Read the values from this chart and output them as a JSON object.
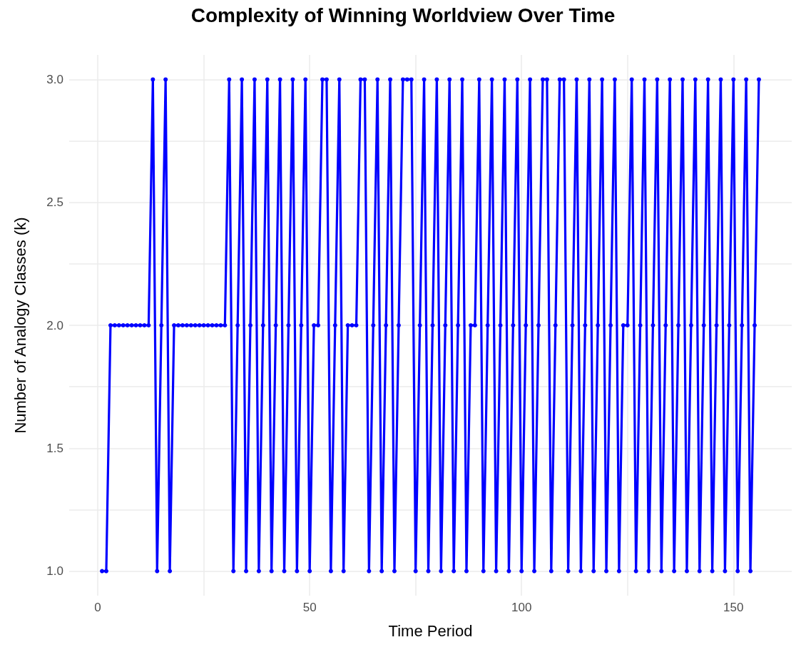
{
  "chart_data": {
    "type": "line",
    "title": "Complexity of Winning Worldview Over Time",
    "xlabel": "Time Period",
    "ylabel": "Number of Analogy Classes (k)",
    "x": [
      1,
      2,
      3,
      4,
      5,
      6,
      7,
      8,
      9,
      10,
      11,
      12,
      13,
      14,
      15,
      16,
      17,
      18,
      19,
      20,
      21,
      22,
      23,
      24,
      25,
      26,
      27,
      28,
      29,
      30,
      31,
      32,
      33,
      34,
      35,
      36,
      37,
      38,
      39,
      40,
      41,
      42,
      43,
      44,
      45,
      46,
      47,
      48,
      49,
      50,
      51,
      52,
      53,
      54,
      55,
      56,
      57,
      58,
      59,
      60,
      61,
      62,
      63,
      64,
      65,
      66,
      67,
      68,
      69,
      70,
      71,
      72,
      73,
      74,
      75,
      76,
      77,
      78,
      79,
      80,
      81,
      82,
      83,
      84,
      85,
      86,
      87,
      88,
      89,
      90,
      91,
      92,
      93,
      94,
      95,
      96,
      97,
      98,
      99,
      100,
      101,
      102,
      103,
      104,
      105,
      106,
      107,
      108,
      109,
      110,
      111,
      112,
      113,
      114,
      115,
      116,
      117,
      118,
      119,
      120,
      121,
      122,
      123,
      124,
      125,
      126,
      127,
      128,
      129,
      130,
      131,
      132,
      133,
      134,
      135,
      136,
      137,
      138,
      139,
      140,
      141,
      142,
      143,
      144,
      145,
      146,
      147,
      148,
      149,
      150,
      151,
      152,
      153,
      154,
      155,
      156
    ],
    "series": [
      {
        "color": "#0000ff",
        "values": [
          1,
          1,
          2,
          2,
          2,
          2,
          2,
          2,
          2,
          2,
          2,
          2,
          3,
          1,
          2,
          3,
          1,
          2,
          2,
          2,
          2,
          2,
          2,
          2,
          2,
          2,
          2,
          2,
          2,
          2,
          3,
          1,
          2,
          3,
          1,
          2,
          3,
          1,
          2,
          3,
          1,
          2,
          3,
          1,
          2,
          3,
          1,
          2,
          3,
          1,
          2,
          2,
          3,
          3,
          1,
          2,
          3,
          1,
          2,
          2,
          2,
          3,
          3,
          1,
          2,
          3,
          1,
          2,
          3,
          1,
          2,
          3,
          3,
          3,
          1,
          2,
          3,
          1,
          2,
          3,
          1,
          2,
          3,
          1,
          2,
          3,
          1,
          2,
          2,
          3,
          1,
          2,
          3,
          1,
          2,
          3,
          1,
          2,
          3,
          1,
          2,
          3,
          1,
          2,
          3,
          3,
          1,
          2,
          3,
          3,
          1,
          2,
          3,
          1,
          2,
          3,
          1,
          2,
          3,
          1,
          2,
          3,
          1,
          2,
          2,
          3,
          1,
          2,
          3,
          1,
          2,
          3,
          1,
          2,
          3,
          1,
          2,
          3,
          1,
          2,
          3,
          1,
          2,
          3,
          1,
          2,
          3,
          1,
          2,
          3,
          1,
          2,
          3,
          1,
          2,
          3
        ]
      }
    ],
    "xlim": [
      -6.75,
      163.75
    ],
    "xticks": [
      0,
      {
        "value": 25,
        "label": null
      },
      50,
      {
        "value": 75,
        "label": null
      },
      100,
      {
        "value": 125,
        "label": null
      },
      150
    ],
    "ylim": [
      0.9,
      3.1
    ],
    "yticks": [
      {
        "value": 1,
        "label": "1.0"
      },
      {
        "value": 1.25,
        "label": null
      },
      {
        "value": 1.5,
        "label": "1.5"
      },
      {
        "value": 1.75,
        "label": null
      },
      {
        "value": 2,
        "label": "2.0"
      },
      {
        "value": 2.25,
        "label": null
      },
      {
        "value": 2.5,
        "label": "2.5"
      },
      {
        "value": 2.75,
        "label": null
      },
      {
        "value": 3,
        "label": "3.0"
      }
    ],
    "grid": true,
    "marker": "circle",
    "line_style": "solid"
  }
}
